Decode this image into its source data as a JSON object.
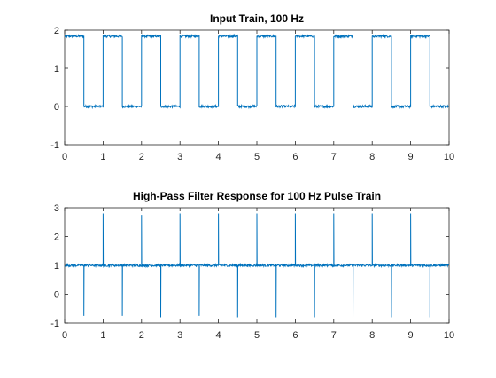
{
  "chart_data": [
    {
      "type": "line",
      "title": "Input Train, 100 Hz",
      "xlabel": "",
      "ylabel": "",
      "xlim": [
        0,
        10
      ],
      "ylim": [
        -1,
        2
      ],
      "xticks": [
        0,
        1,
        2,
        3,
        4,
        5,
        6,
        7,
        8,
        9,
        10
      ],
      "yticks": [
        -1,
        0,
        1,
        2
      ],
      "grid": false,
      "color": "#0072bd",
      "series": [
        {
          "signal": "square pulse train",
          "high_level": 1.84,
          "low_level": 0.0,
          "pulses": [
            {
              "start": 0.0,
              "end": 0.5
            },
            {
              "start": 1.0,
              "end": 1.5
            },
            {
              "start": 2.0,
              "end": 2.5
            },
            {
              "start": 3.0,
              "end": 3.5
            },
            {
              "start": 4.0,
              "end": 4.5
            },
            {
              "start": 5.0,
              "end": 5.5
            },
            {
              "start": 6.0,
              "end": 6.5
            },
            {
              "start": 7.0,
              "end": 7.5
            },
            {
              "start": 8.0,
              "end": 8.5
            },
            {
              "start": 9.0,
              "end": 9.5
            }
          ],
          "noise_amplitude": 0.03
        }
      ]
    },
    {
      "type": "line",
      "title": "High-Pass Filter Response for 100 Hz Pulse Train",
      "xlabel": "",
      "ylabel": "",
      "xlim": [
        0,
        10
      ],
      "ylim": [
        -1,
        3
      ],
      "xticks": [
        0,
        1,
        2,
        3,
        4,
        5,
        6,
        7,
        8,
        9,
        10
      ],
      "yticks": [
        -1,
        0,
        1,
        2,
        3
      ],
      "grid": false,
      "color": "#0072bd",
      "series": [
        {
          "signal": "filtered response",
          "baseline": 1.0,
          "positive_spikes": [
            {
              "x": 1,
              "y": 2.8
            },
            {
              "x": 2,
              "y": 2.75
            },
            {
              "x": 3,
              "y": 2.8
            },
            {
              "x": 4,
              "y": 2.8
            },
            {
              "x": 5,
              "y": 2.8
            },
            {
              "x": 6,
              "y": 2.8
            },
            {
              "x": 7,
              "y": 2.8
            },
            {
              "x": 8,
              "y": 2.8
            },
            {
              "x": 9,
              "y": 2.8
            }
          ],
          "negative_spikes": [
            {
              "x": 0.5,
              "y": -0.75
            },
            {
              "x": 1.5,
              "y": -0.75
            },
            {
              "x": 2.5,
              "y": -0.8
            },
            {
              "x": 3.5,
              "y": -0.75
            },
            {
              "x": 4.5,
              "y": -0.8
            },
            {
              "x": 5.5,
              "y": -0.8
            },
            {
              "x": 6.5,
              "y": -0.8
            },
            {
              "x": 7.5,
              "y": -0.8
            },
            {
              "x": 8.5,
              "y": -0.8
            },
            {
              "x": 9.5,
              "y": -0.8
            }
          ],
          "noise_amplitude": 0.04
        }
      ]
    }
  ]
}
